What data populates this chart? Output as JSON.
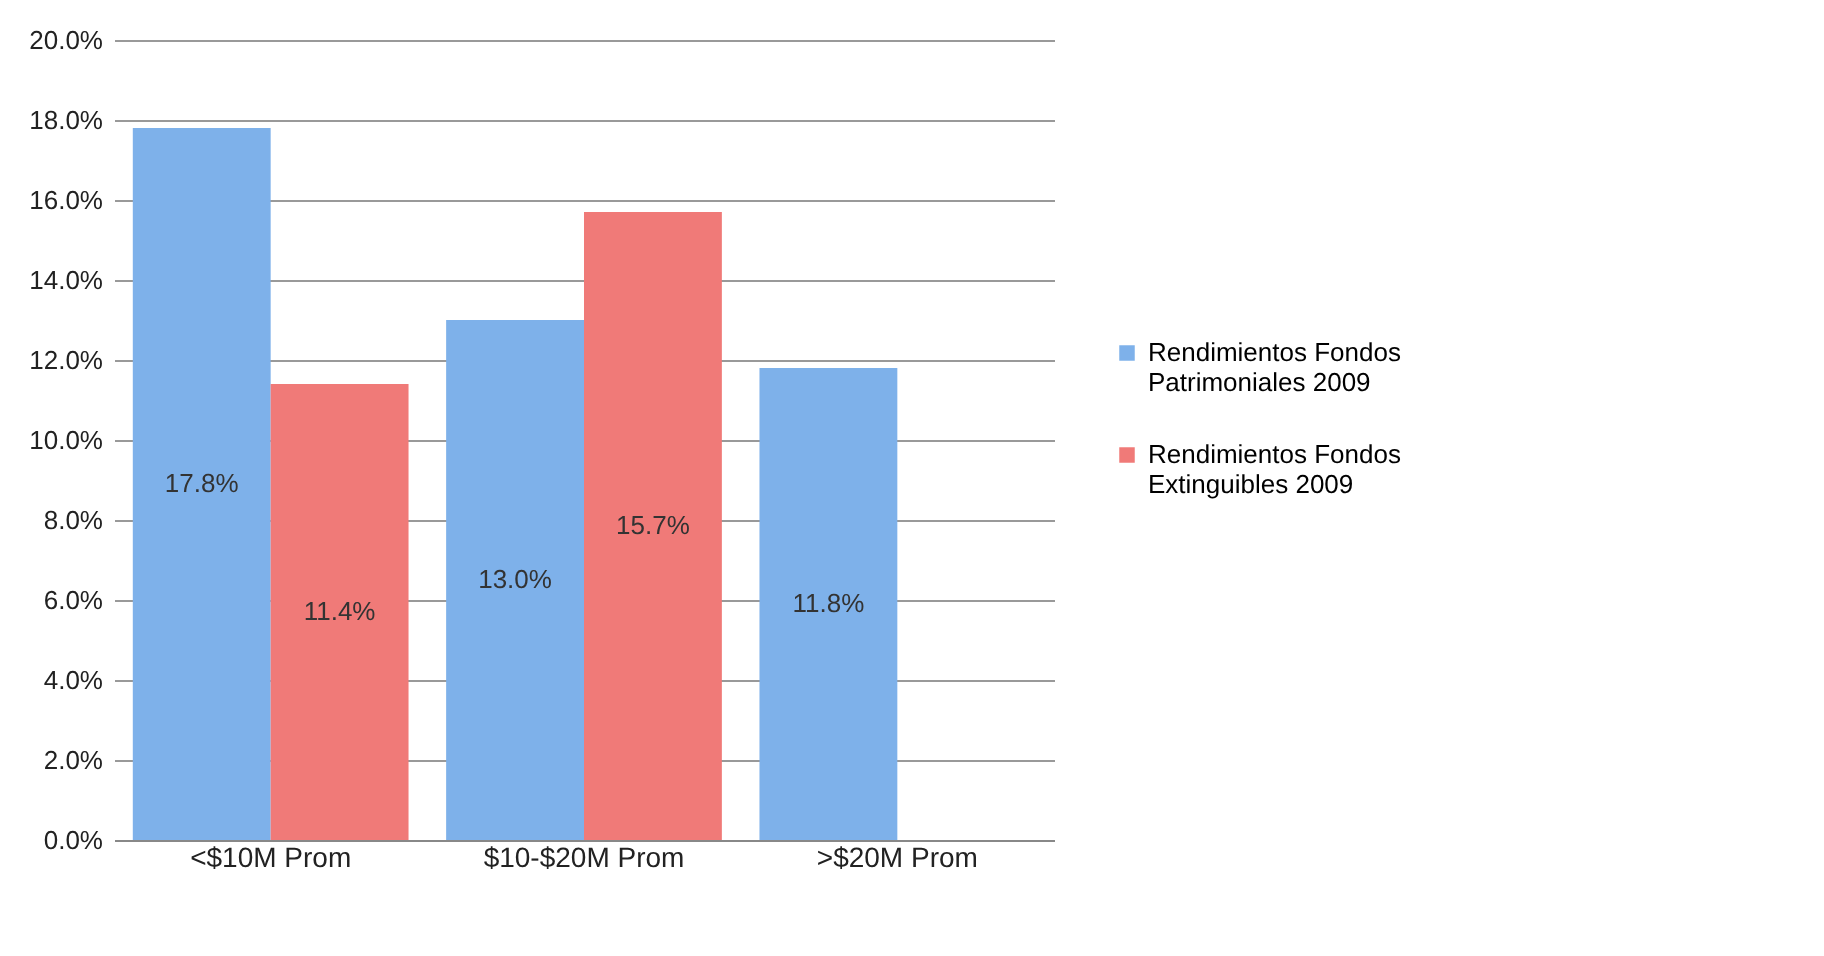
{
  "chart_data": {
    "type": "bar",
    "categories": [
      "<$10M Prom",
      "$10-$20M Prom",
      ">$20M Prom"
    ],
    "series": [
      {
        "name": "Rendimientos Fondos Patrimoniales 2009",
        "color": "#7eb1ea",
        "values": [
          17.8,
          13.0,
          11.8
        ],
        "value_labels": [
          "17.8%",
          "13.0%",
          "11.8%"
        ]
      },
      {
        "name": "Rendimientos Fondos Extinguibles 2009",
        "color": "#f07a78",
        "values": [
          11.4,
          15.7,
          null
        ],
        "value_labels": [
          "11.4%",
          "15.7%",
          null
        ]
      }
    ],
    "ylim": [
      0,
      20
    ],
    "yticks": [
      {
        "value": 0,
        "label": "0.0%"
      },
      {
        "value": 2,
        "label": "2.0%"
      },
      {
        "value": 4,
        "label": "4.0%"
      },
      {
        "value": 6,
        "label": "6.0%"
      },
      {
        "value": 8,
        "label": "8.0%"
      },
      {
        "value": 10,
        "label": "10.0%"
      },
      {
        "value": 12,
        "label": "12.0%"
      },
      {
        "value": 14,
        "label": "14.0%"
      },
      {
        "value": 16,
        "label": "16.0%"
      },
      {
        "value": 18,
        "label": "18.0%"
      },
      {
        "value": 20,
        "label": "20.0%"
      }
    ],
    "grid": "y",
    "legend": "right"
  }
}
